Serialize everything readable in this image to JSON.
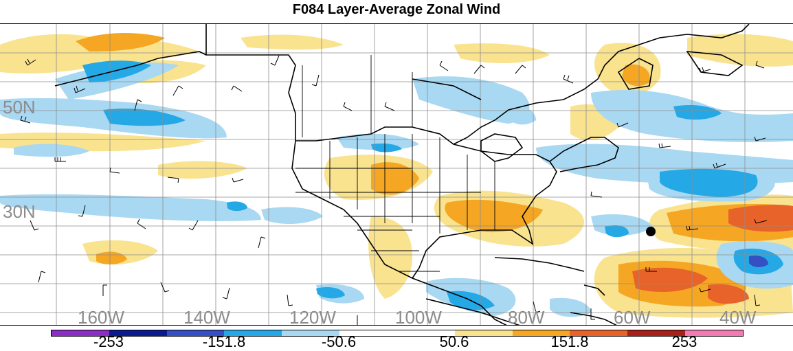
{
  "title": "F084 Layer-Average Zonal Wind",
  "map": {
    "latitude_labels": [
      "50N",
      "30N"
    ],
    "longitude_labels": [
      "160W",
      "140W",
      "120W",
      "100W",
      "80W",
      "60W",
      "40W"
    ],
    "grid_lines": true
  },
  "colorbar": {
    "colors": [
      "#8a2fc4",
      "#0b1a8f",
      "#3450c2",
      "#25a8e6",
      "#a9d8f2",
      "#ffffff",
      "#ffffff",
      "#f9e38f",
      "#f5a623",
      "#e8632a",
      "#a8201a",
      "#f07bb0"
    ],
    "labels": [
      "-253",
      "-151.8",
      "-50.6",
      "50.6",
      "151.8",
      "253"
    ]
  },
  "shading": {
    "positive_light": "#f9e38f",
    "positive_mid": "#f5a623",
    "positive_strong": "#e8632a",
    "positive_extreme": "#c8321e",
    "negative_light": "#a9d8f2",
    "negative_mid": "#25a8e6",
    "negative_strong": "#3450c2"
  }
}
